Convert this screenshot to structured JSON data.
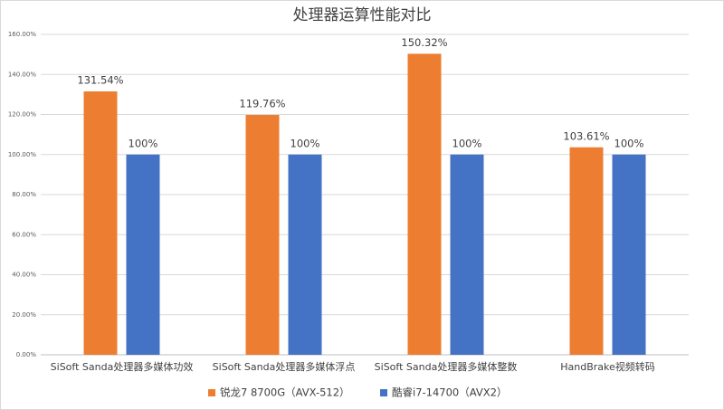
{
  "chart_data": {
    "type": "bar",
    "title": "处理器运算性能对比",
    "categories": [
      "SiSoft Sanda处理器多媒体功效",
      "SiSoft Sanda处理器多媒体浮点",
      "SiSoft Sanda处理器多媒体整数",
      "HandBrake视频转码"
    ],
    "series": [
      {
        "name": "锐龙7 8700G（AVX-512）",
        "color": "#ed7d31",
        "values": [
          131.54,
          119.76,
          150.32,
          103.61
        ],
        "value_labels": [
          "131.54%",
          "119.76%",
          "150.32%",
          "103.61%"
        ]
      },
      {
        "name": "酷睿i7-14700（AVX2）",
        "color": "#4472c4",
        "values": [
          100,
          100,
          100,
          100
        ],
        "value_labels": [
          "100%",
          "100%",
          "100%",
          "100%"
        ]
      }
    ],
    "ylim": [
      0,
      160
    ],
    "yticks": [
      {
        "value": 0,
        "label": "0.00%"
      },
      {
        "value": 20,
        "label": "20.00%"
      },
      {
        "value": 40,
        "label": "40.00%"
      },
      {
        "value": 60,
        "label": "60.00%"
      },
      {
        "value": 80,
        "label": "80.00%"
      },
      {
        "value": 100,
        "label": "100.00%"
      },
      {
        "value": 120,
        "label": "120.00%"
      },
      {
        "value": 140,
        "label": "140.00%"
      },
      {
        "value": 160,
        "label": "160.00%"
      }
    ],
    "grid": true,
    "legend": "bottom"
  }
}
